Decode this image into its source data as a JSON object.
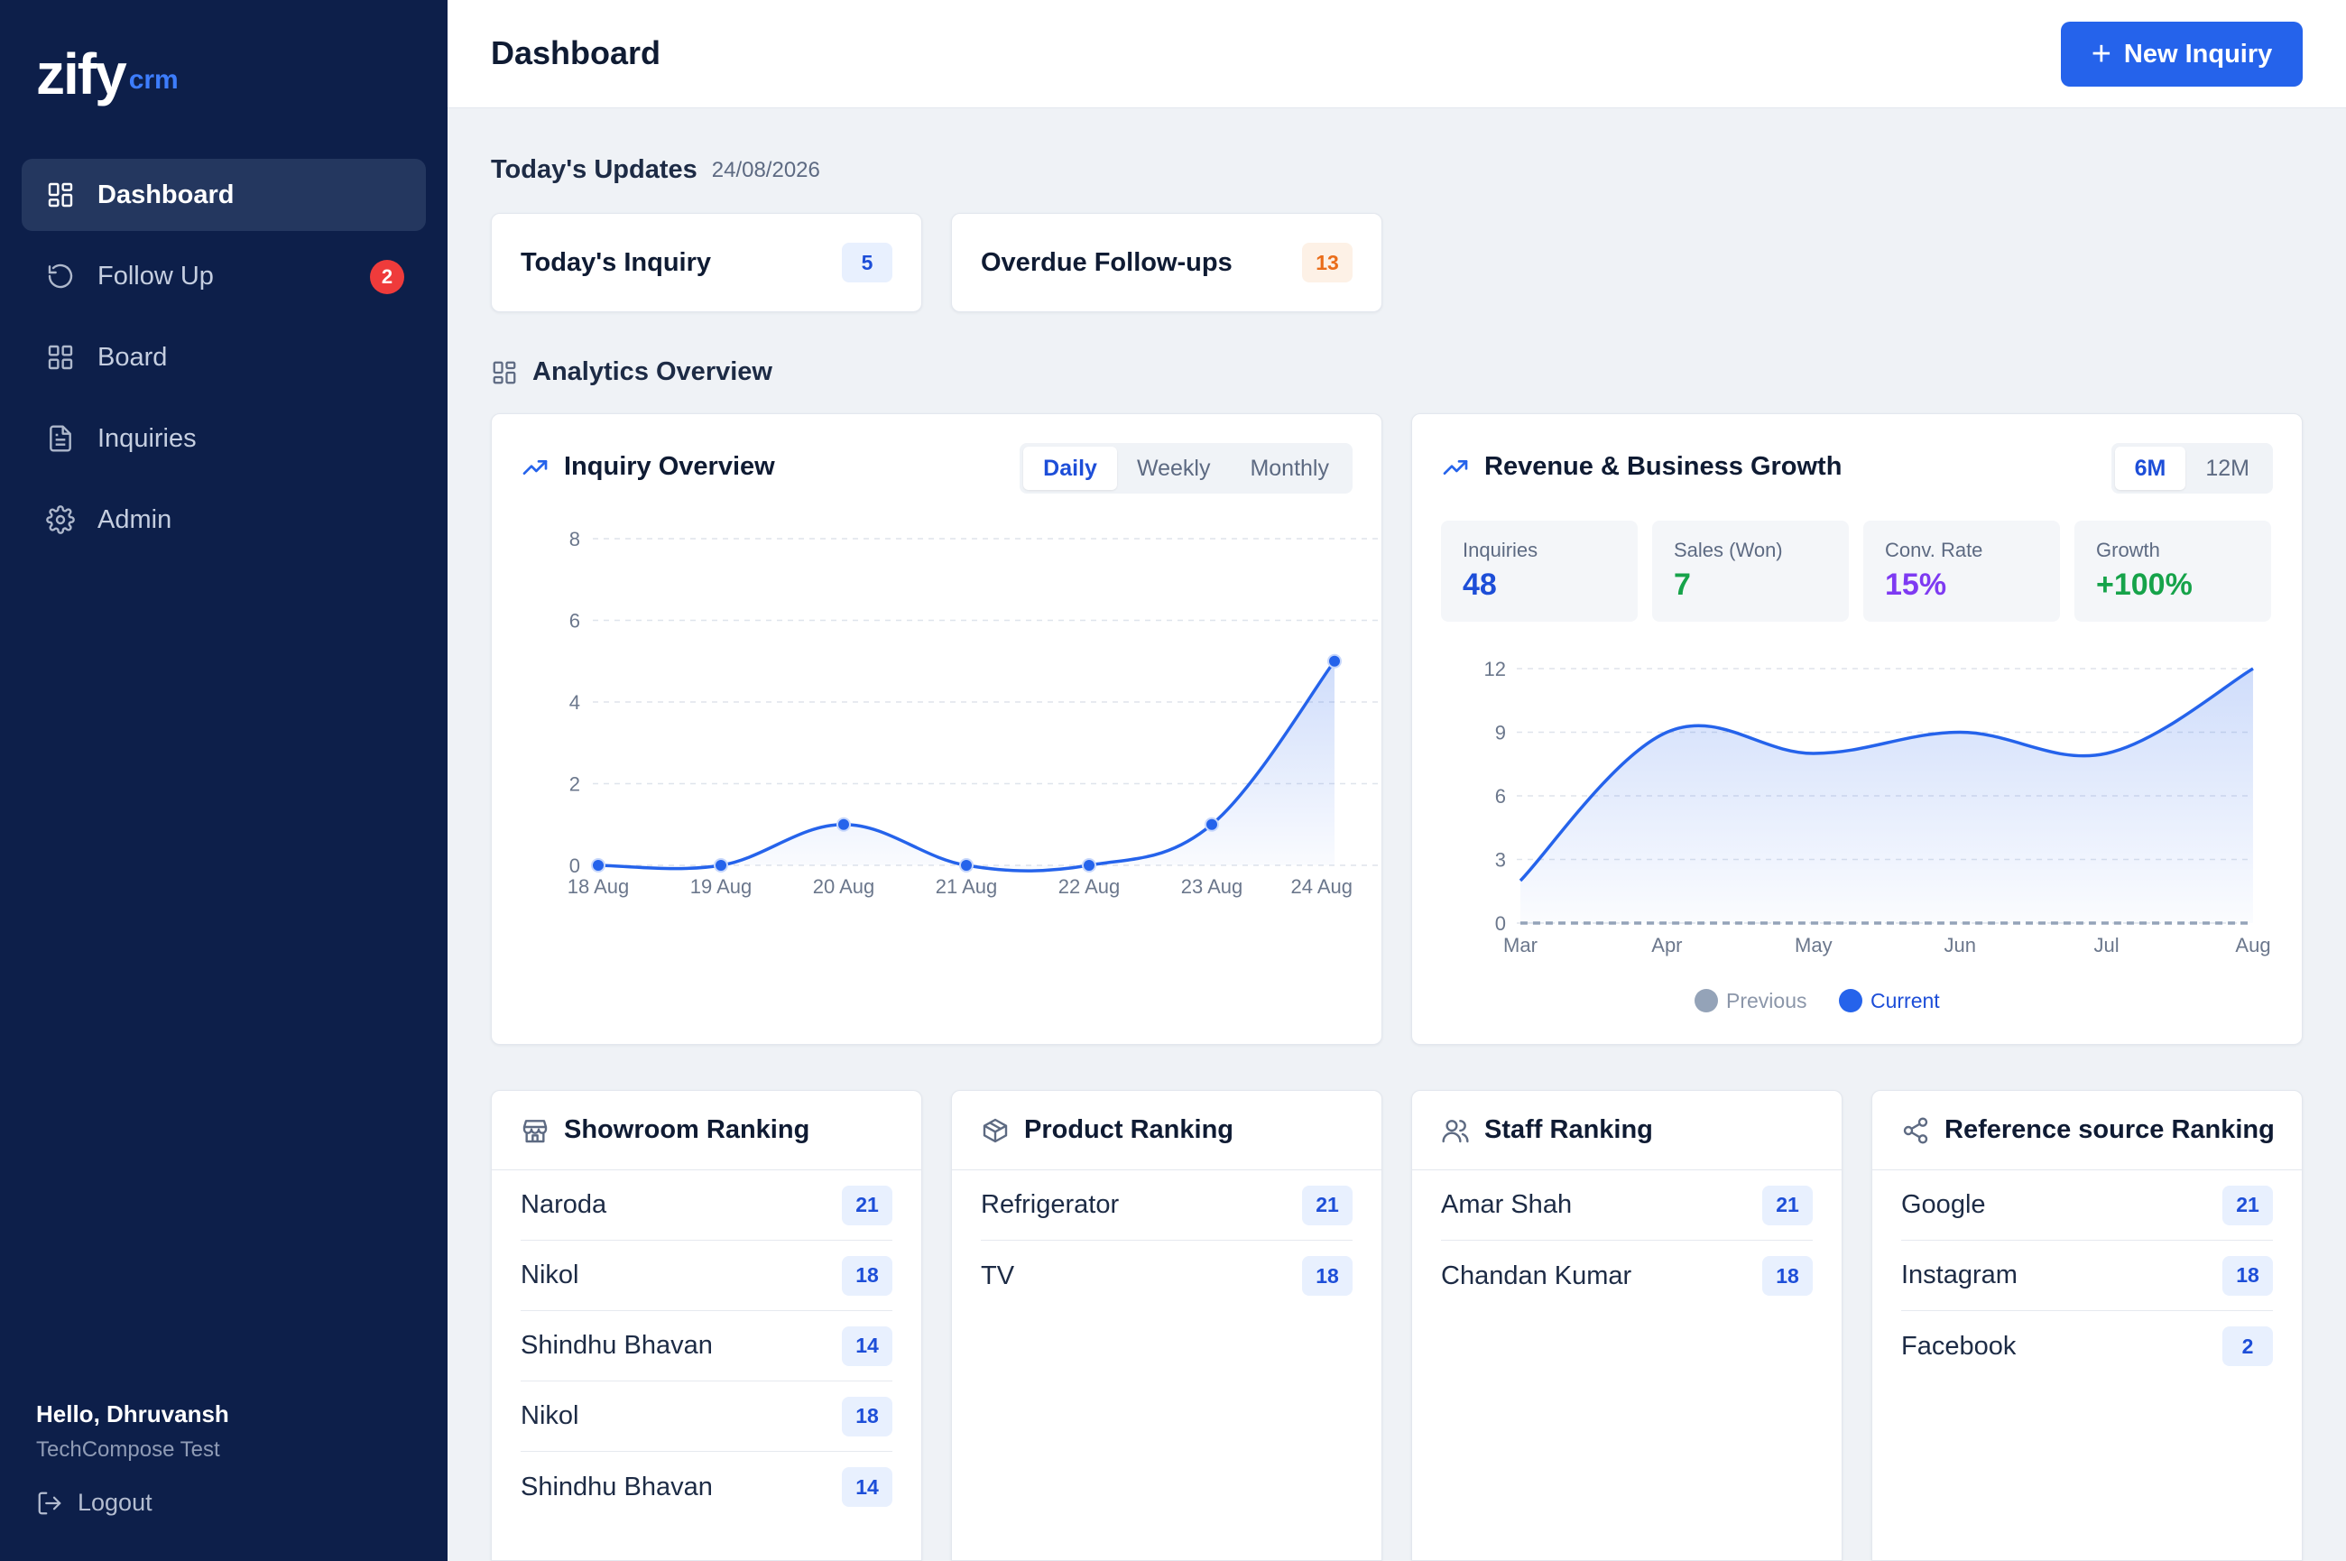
{
  "app": {
    "logo_main": "zify",
    "logo_sub": "crm"
  },
  "sidebar": {
    "items": [
      {
        "label": "Dashboard",
        "icon": "grid-icon",
        "active": true
      },
      {
        "label": "Follow Up",
        "icon": "refresh-icon",
        "badge": "2"
      },
      {
        "label": "Board",
        "icon": "board-icon"
      },
      {
        "label": "Inquiries",
        "icon": "document-icon"
      },
      {
        "label": "Admin",
        "icon": "gear-icon"
      }
    ],
    "user_greeting": "Hello, Dhruvansh",
    "user_org": "TechCompose Test",
    "logout_label": "Logout"
  },
  "header": {
    "title": "Dashboard",
    "new_button_label": "New Inquiry"
  },
  "updates": {
    "title": "Today's Updates",
    "date": "24/08/2026",
    "cards": [
      {
        "label": "Today's Inquiry",
        "count": "5",
        "color": "#1d4ed8"
      },
      {
        "label": "Overdue Follow-ups",
        "count": "13",
        "color": "#ea6d1a"
      }
    ]
  },
  "analytics": {
    "title": "Analytics Overview"
  },
  "inquiry_chart": {
    "title": "Inquiry Overview",
    "tabs": [
      "Daily",
      "Weekly",
      "Monthly"
    ],
    "active_tab": "Daily"
  },
  "revenue_chart": {
    "title": "Revenue & Business Growth",
    "tabs": [
      "6M",
      "12M"
    ],
    "active_tab": "6M",
    "stats": [
      {
        "label": "Inquiries",
        "value": "48",
        "color": "#1d4ed8"
      },
      {
        "label": "Sales (Won)",
        "value": "7",
        "color": "#16a34a"
      },
      {
        "label": "Conv. Rate",
        "value": "15%",
        "color": "#7e3af2"
      },
      {
        "label": "Growth",
        "value": "+100%",
        "color": "#16a34a"
      }
    ],
    "legend": [
      "Previous",
      "Current"
    ]
  },
  "chart_data": [
    {
      "type": "line",
      "title": "Inquiry Overview",
      "categories": [
        "18 Aug",
        "19 Aug",
        "20 Aug",
        "21 Aug",
        "22 Aug",
        "23 Aug",
        "24 Aug"
      ],
      "values": [
        0,
        0,
        1,
        0,
        0,
        1,
        5
      ],
      "yticks": [
        0,
        2,
        4,
        6,
        8
      ],
      "ylim": [
        0,
        8
      ],
      "grid": true,
      "color": "#2563eb"
    },
    {
      "type": "area",
      "title": "Revenue & Business Growth",
      "categories": [
        "Mar",
        "Apr",
        "May",
        "Jun",
        "Jul",
        "Aug"
      ],
      "series": [
        {
          "name": "Previous",
          "values": [
            0,
            0,
            0,
            0,
            0,
            0
          ],
          "color": "#94a3b8"
        },
        {
          "name": "Current",
          "values": [
            2,
            9,
            8,
            9,
            8,
            12
          ],
          "color": "#2563eb"
        }
      ],
      "yticks": [
        0,
        3,
        6,
        9,
        12
      ],
      "ylim": [
        0,
        12
      ],
      "grid": true,
      "legend_position": "bottom"
    }
  ],
  "rankings": [
    {
      "title": "Showroom Ranking",
      "icon": "store-icon",
      "rows": [
        {
          "name": "Naroda",
          "value": "21"
        },
        {
          "name": "Nikol",
          "value": "18"
        },
        {
          "name": "Shindhu Bhavan",
          "value": "14"
        },
        {
          "name": "Nikol",
          "value": "18"
        },
        {
          "name": "Shindhu Bhavan",
          "value": "14"
        }
      ]
    },
    {
      "title": "Product Ranking",
      "icon": "box-icon",
      "rows": [
        {
          "name": "Refrigerator",
          "value": "21"
        },
        {
          "name": "TV",
          "value": "18"
        }
      ]
    },
    {
      "title": "Staff Ranking",
      "icon": "users-icon",
      "rows": [
        {
          "name": "Amar Shah",
          "value": "21"
        },
        {
          "name": "Chandan Kumar",
          "value": "18"
        }
      ]
    },
    {
      "title": "Reference source Ranking",
      "icon": "share-icon",
      "rows": [
        {
          "name": "Google",
          "value": "21"
        },
        {
          "name": "Instagram",
          "value": "18"
        },
        {
          "name": "Facebook",
          "value": "2"
        }
      ]
    }
  ]
}
